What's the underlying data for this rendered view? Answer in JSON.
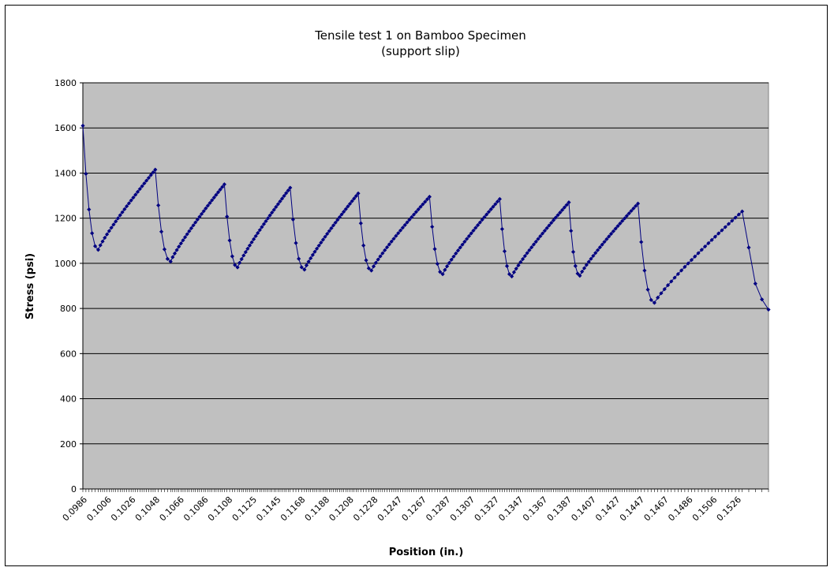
{
  "chart_data": {
    "type": "line",
    "title": "Tensile test 1 on Bamboo Specimen",
    "subtitle": "(support slip)",
    "xlabel": "Position (in.)",
    "ylabel": "Stress (psi)",
    "ylim": [
      0,
      1800
    ],
    "y_ticks": [
      "0",
      "200",
      "400",
      "600",
      "800",
      "1000",
      "1200",
      "1400",
      "1600",
      "1800"
    ],
    "x_tick_labels": [
      "0.0986",
      "0.1006",
      "0.1026",
      "0.1048",
      "0.1066",
      "0.1086",
      "0.1108",
      "0.1125",
      "0.1145",
      "0.1168",
      "0.1188",
      "0.1208",
      "0.1228",
      "0.1247",
      "0.1267",
      "0.1287",
      "0.1307",
      "0.1327",
      "0.1347",
      "0.1367",
      "0.1387",
      "0.1407",
      "0.1427",
      "0.1447",
      "0.1467",
      "0.1486",
      "0.1506",
      "0.1526"
    ],
    "grid": "horizontal",
    "plot_background": "#c0c0c0",
    "series_color": "#000080",
    "segments": [
      {
        "x_start": 0.0986,
        "y_start": 1610,
        "x_end": 0.1052,
        "y_end": 1415,
        "min_x": 0.1,
        "min_y": 1060
      },
      {
        "x_end": 0.1115,
        "y_end": 1350,
        "min_x": 0.1066,
        "min_y": 1008
      },
      {
        "x_end": 0.1175,
        "y_end": 1335,
        "min_x": 0.1127,
        "min_y": 982
      },
      {
        "x_end": 0.1237,
        "y_end": 1310,
        "min_x": 0.1188,
        "min_y": 972
      },
      {
        "x_end": 0.1302,
        "y_end": 1295,
        "min_x": 0.1249,
        "min_y": 968
      },
      {
        "x_end": 0.1366,
        "y_end": 1285,
        "min_x": 0.1314,
        "min_y": 952
      },
      {
        "x_end": 0.1429,
        "y_end": 1270,
        "min_x": 0.1377,
        "min_y": 942
      },
      {
        "x_end": 0.1492,
        "y_end": 1265,
        "min_x": 0.1439,
        "min_y": 945
      },
      {
        "x_end": 0.1587,
        "y_end": 1230,
        "min_x": 0.1507,
        "min_y": 825,
        "tail": [
          1070,
          910,
          840,
          795
        ]
      }
    ]
  }
}
